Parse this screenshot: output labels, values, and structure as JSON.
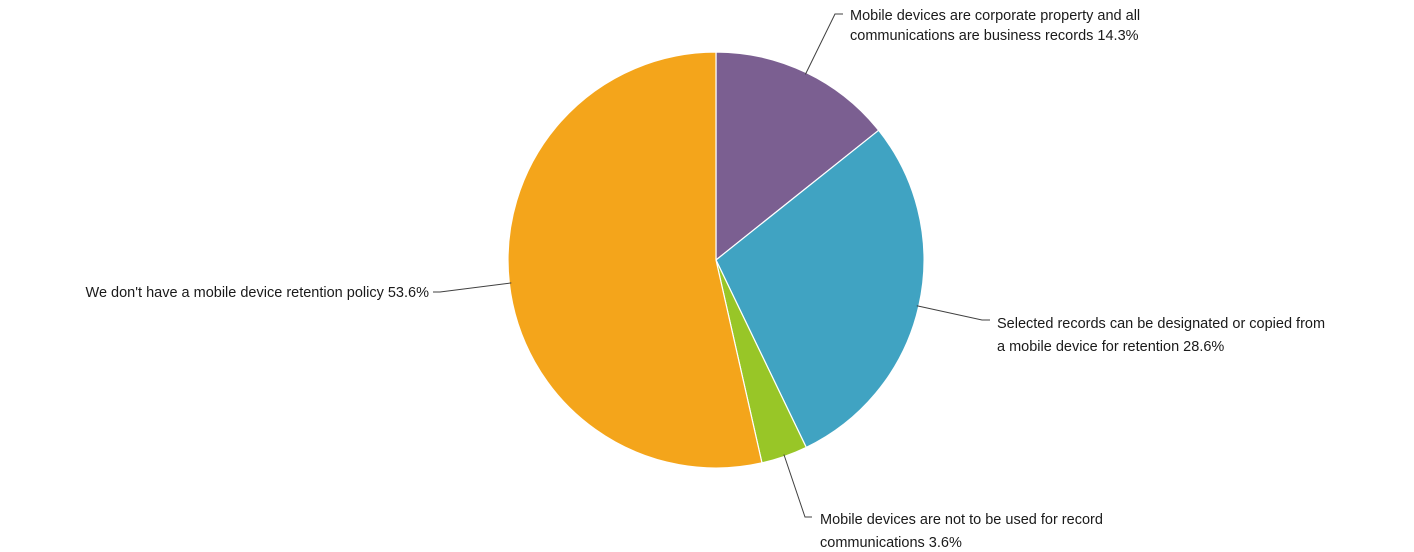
{
  "chart_data": {
    "type": "pie",
    "title": "",
    "start_angle": "12 o'clock",
    "direction": "clockwise",
    "slices": [
      {
        "label_lines": [
          "Mobile devices are corporate property and all",
          "communications are business records 14.3%"
        ],
        "value": 14.3,
        "color": "#7b5f91"
      },
      {
        "label_lines": [
          "Selected records can be designated or copied from",
          "a mobile device for retention 28.6%"
        ],
        "value": 28.6,
        "color": "#40a3c2"
      },
      {
        "label_lines": [
          "Mobile devices are not to be used for record",
          "communications 3.6%"
        ],
        "value": 3.6,
        "color": "#98c627"
      },
      {
        "label_lines": [
          "We don't have a mobile device retention policy 53.6%"
        ],
        "value": 53.6,
        "color": "#f4a51b"
      }
    ]
  }
}
